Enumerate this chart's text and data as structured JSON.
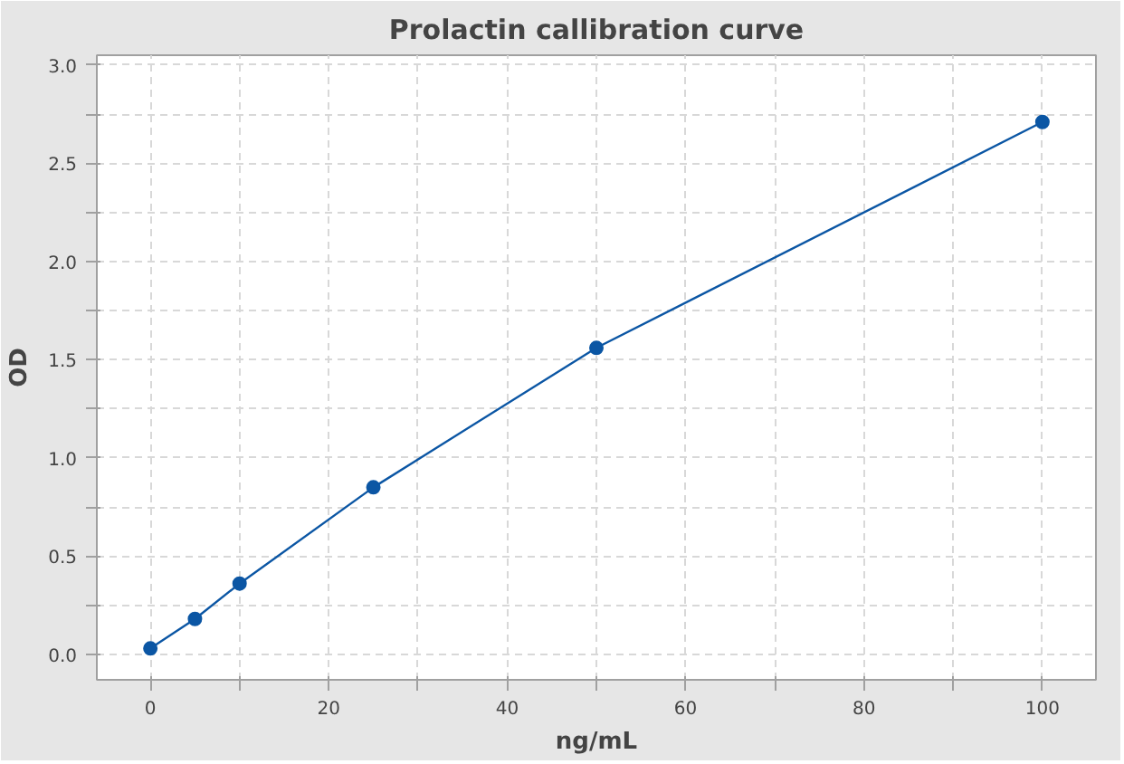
{
  "chart_data": {
    "type": "line",
    "title": "Prolactin callibration curve",
    "xlabel": "ng/mL",
    "ylabel": "OD",
    "x": [
      0,
      5,
      10,
      25,
      50,
      100
    ],
    "series": [
      {
        "color": "#0b56a4",
        "values": [
          0.03,
          0.18,
          0.36,
          0.85,
          1.56,
          2.71
        ]
      }
    ],
    "xlim": [
      -6,
      106
    ],
    "ylim": [
      -0.13,
      3.05
    ],
    "xticks": [
      0,
      {
        "value": 10,
        "label": null
      },
      20,
      {
        "value": 30,
        "label": null
      },
      40,
      {
        "value": 50,
        "label": null
      },
      60,
      {
        "value": 70,
        "label": null
      },
      80,
      {
        "value": 90,
        "label": null
      },
      100
    ],
    "yticks": [
      {
        "value": 0,
        "label": "0.0"
      },
      {
        "value": 0.25,
        "label": null
      },
      0.5,
      {
        "value": 0.75,
        "label": null
      },
      {
        "value": 1,
        "label": "1.0"
      },
      {
        "value": 1.25,
        "label": null
      },
      1.5,
      {
        "value": 1.75,
        "label": null
      },
      {
        "value": 2,
        "label": "2.0"
      },
      {
        "value": 2.25,
        "label": null
      },
      2.5,
      {
        "value": 2.75,
        "label": null
      },
      {
        "value": 3,
        "label": "3.0"
      }
    ],
    "grid": true,
    "marker": "circle",
    "line_style": "solid"
  }
}
